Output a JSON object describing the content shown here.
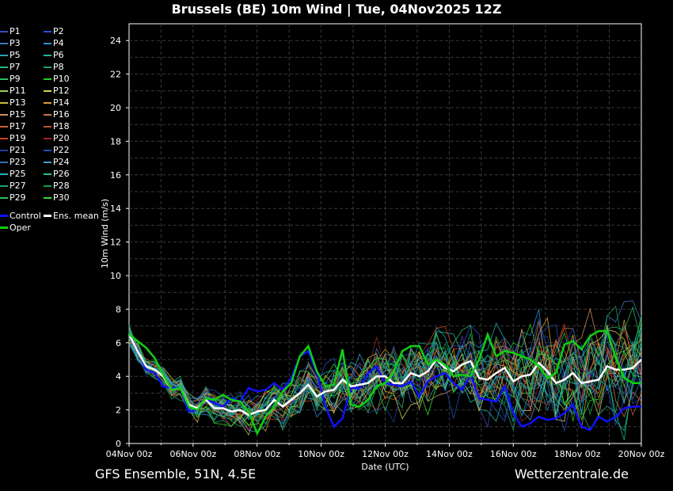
{
  "title": "Brussels  (BE)  10m Wind | Tue, 04Nov2025 12Z",
  "footer_left": "GFS Ensemble, 51N, 4.5E",
  "footer_right": "Wetterzentrale.de",
  "chart_data": {
    "type": "line",
    "xlabel": "Date (UTC)",
    "ylabel": "10m Wind (m/s)",
    "ylim": [
      0,
      25
    ],
    "yticks": [
      0,
      2,
      4,
      6,
      8,
      10,
      12,
      14,
      16,
      18,
      20,
      22,
      24
    ],
    "xlim": [
      0,
      16
    ],
    "xticks": [
      0,
      2,
      4,
      6,
      8,
      10,
      12,
      14,
      16
    ],
    "xtick_labels": [
      "04Nov 00z",
      "06Nov 00z",
      "08Nov 00z",
      "10Nov 00z",
      "12Nov 00z",
      "14Nov 00z",
      "16Nov 00z",
      "18Nov 00z",
      "20Nov 00z"
    ],
    "grid": true,
    "legend_position": "left-outside",
    "legend": [
      "P1",
      "P2",
      "P3",
      "P4",
      "P5",
      "P6",
      "P7",
      "P8",
      "P9",
      "P10",
      "P11",
      "P12",
      "P13",
      "P14",
      "P15",
      "P16",
      "P17",
      "P18",
      "P19",
      "P20",
      "P21",
      "P22",
      "P23",
      "P24",
      "P25",
      "P26",
      "P27",
      "P28",
      "P29",
      "P30",
      "Control",
      "Ens. mean",
      "Oper"
    ],
    "colors": {
      "P1": "#3b4cc0",
      "P2": "#2a4fd8",
      "P3": "#3a7bbf",
      "P4": "#2b8fd6",
      "P5": "#25a6b8",
      "P6": "#1fb5a0",
      "P7": "#1eb58a",
      "P8": "#21a36a",
      "P9": "#2ebf5f",
      "P10": "#1ed01e",
      "P11": "#9cd05a",
      "P12": "#d8d050",
      "P13": "#c8c040",
      "P14": "#d8a030",
      "P15": "#d09060",
      "P16": "#c87850",
      "P17": "#d06030",
      "P18": "#c05030",
      "P19": "#d04020",
      "P20": "#a02020",
      "P21": "#2040a0",
      "P22": "#2050c0",
      "P23": "#3070b0",
      "P24": "#40a0d0",
      "P25": "#20b0c0",
      "P26": "#20c0a0",
      "P27": "#20a070",
      "P28": "#10a050",
      "P29": "#30c050",
      "P30": "#30e030",
      "Control": "#1010ff",
      "Ens. mean": "#ffffff",
      "Oper": "#10d010"
    },
    "series": [
      {
        "name": "Control",
        "values": [
          6.5,
          5.6,
          4.4,
          4.2,
          3.4,
          3.3,
          3.3,
          1.9,
          2.0,
          2.6,
          2.4,
          2.2,
          2.7,
          2.5,
          3.3,
          3.1,
          3.2,
          3.6,
          3.2,
          3.9,
          5.2,
          5.5,
          4.2,
          2.2,
          1.0,
          1.5,
          3.3,
          3.3,
          4.2,
          4.6,
          3.6,
          3.5,
          3.4,
          3.7,
          2.8,
          3.7,
          4.0,
          4.2,
          3.6,
          3.2,
          4.1,
          2.7,
          2.6,
          2.5,
          3.4,
          1.8,
          1.0,
          1.2,
          1.6,
          1.4,
          1.5,
          1.8,
          2.3,
          1.0,
          0.8,
          1.6,
          1.3,
          1.6,
          2.1,
          2.2,
          2.2
        ]
      },
      {
        "name": "Ens. mean",
        "values": [
          6.5,
          5.5,
          4.6,
          4.4,
          4.0,
          3.2,
          3.3,
          2.3,
          2.1,
          2.6,
          2.1,
          2.1,
          1.9,
          2.0,
          1.7,
          1.9,
          2.0,
          2.6,
          2.2,
          2.6,
          3.0,
          3.5,
          2.8,
          3.1,
          3.2,
          3.8,
          3.4,
          3.5,
          3.6,
          4.0,
          4.0,
          3.6,
          3.6,
          4.2,
          4.0,
          4.3,
          5.0,
          4.5,
          4.3,
          4.7,
          4.9,
          3.9,
          3.8,
          4.2,
          4.5,
          3.7,
          4.0,
          4.1,
          4.8,
          4.3,
          3.6,
          3.8,
          4.2,
          3.6,
          3.7,
          3.8,
          4.6,
          4.4,
          4.4,
          4.5,
          5.0
        ]
      },
      {
        "name": "Oper",
        "values": [
          6.5,
          6.1,
          5.7,
          5.1,
          4.1,
          3.2,
          3.3,
          2.2,
          2.0,
          2.7,
          2.6,
          2.9,
          2.6,
          2.5,
          1.9,
          0.6,
          1.6,
          2.2,
          3.1,
          3.6,
          5.2,
          5.8,
          4.3,
          3.4,
          3.5,
          5.6,
          2.3,
          2.2,
          2.6,
          3.4,
          3.6,
          4.3,
          5.5,
          5.8,
          5.8,
          4.7,
          5.0,
          4.7,
          4.0,
          4.1,
          4.0,
          5.0,
          6.5,
          5.2,
          5.5,
          5.4,
          5.2,
          5.0,
          4.6,
          3.9,
          4.2,
          5.9,
          6.1,
          5.6,
          6.4,
          6.7,
          6.7,
          5.1,
          3.9,
          3.6,
          3.6
        ]
      }
    ]
  }
}
